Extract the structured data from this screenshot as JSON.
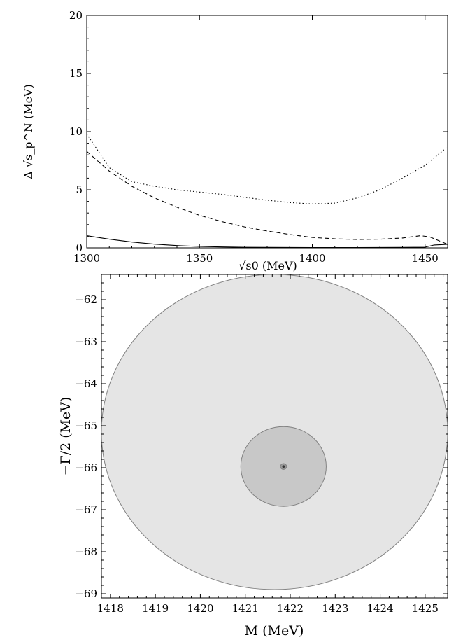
{
  "chart_data": [
    {
      "type": "line",
      "xlabel": "√s0 (MeV)",
      "ylabel": "Δ √s_p^N (MeV)",
      "xlim": [
        1300,
        1460
      ],
      "ylim": [
        0,
        20
      ],
      "xticks": [
        1300,
        1350,
        1400,
        1450
      ],
      "yticks": [
        0,
        5,
        10,
        15,
        20
      ],
      "grid": false,
      "series": [
        {
          "style": "dotted",
          "x": [
            1300,
            1310,
            1320,
            1330,
            1340,
            1350,
            1360,
            1370,
            1380,
            1390,
            1400,
            1410,
            1420,
            1430,
            1440,
            1450,
            1460
          ],
          "y": [
            9.8,
            6.9,
            5.7,
            5.3,
            5.0,
            4.8,
            4.6,
            4.35,
            4.1,
            3.9,
            3.78,
            3.85,
            4.3,
            5.0,
            6.0,
            7.1,
            8.7
          ]
        },
        {
          "style": "dashed",
          "x": [
            1300,
            1310,
            1320,
            1330,
            1340,
            1350,
            1360,
            1370,
            1380,
            1390,
            1400,
            1410,
            1420,
            1430,
            1440,
            1448,
            1452,
            1460
          ],
          "y": [
            8.3,
            6.6,
            5.3,
            4.3,
            3.5,
            2.8,
            2.25,
            1.8,
            1.45,
            1.15,
            0.9,
            0.78,
            0.72,
            0.75,
            0.85,
            1.05,
            0.95,
            0.3
          ]
        },
        {
          "style": "solid",
          "x": [
            1300,
            1310,
            1320,
            1330,
            1340,
            1350,
            1360,
            1370,
            1380,
            1400,
            1420,
            1440,
            1450,
            1454,
            1460
          ],
          "y": [
            1.05,
            0.75,
            0.5,
            0.32,
            0.2,
            0.12,
            0.08,
            0.05,
            0.04,
            0.03,
            0.03,
            0.04,
            0.06,
            0.25,
            0.3
          ]
        }
      ]
    },
    {
      "type": "scatter",
      "xlabel": "M (MeV)",
      "ylabel": "−Γ/2 (MeV)",
      "xlim": [
        1417.8,
        1425.5
      ],
      "ylim": [
        -69.1,
        -61.4
      ],
      "xticks": [
        1418,
        1419,
        1420,
        1421,
        1422,
        1423,
        1424,
        1425
      ],
      "yticks": [
        -62,
        -63,
        -64,
        -65,
        -66,
        -67,
        -68,
        -69
      ],
      "grid": false,
      "regions": [
        {
          "center": [
            1421.65,
            -65.15
          ],
          "radius": [
            3.85,
            3.75
          ],
          "color": "#e5e5e5"
        },
        {
          "center": [
            1421.85,
            -65.97
          ],
          "radius": [
            0.95,
            0.95
          ],
          "color": "#c8c8c8"
        },
        {
          "center": [
            1421.85,
            -65.97
          ],
          "radius": [
            0.07,
            0.07
          ],
          "color": "#9a9a9a"
        }
      ],
      "points": [
        {
          "x": 1421.85,
          "y": -65.97
        }
      ]
    }
  ]
}
